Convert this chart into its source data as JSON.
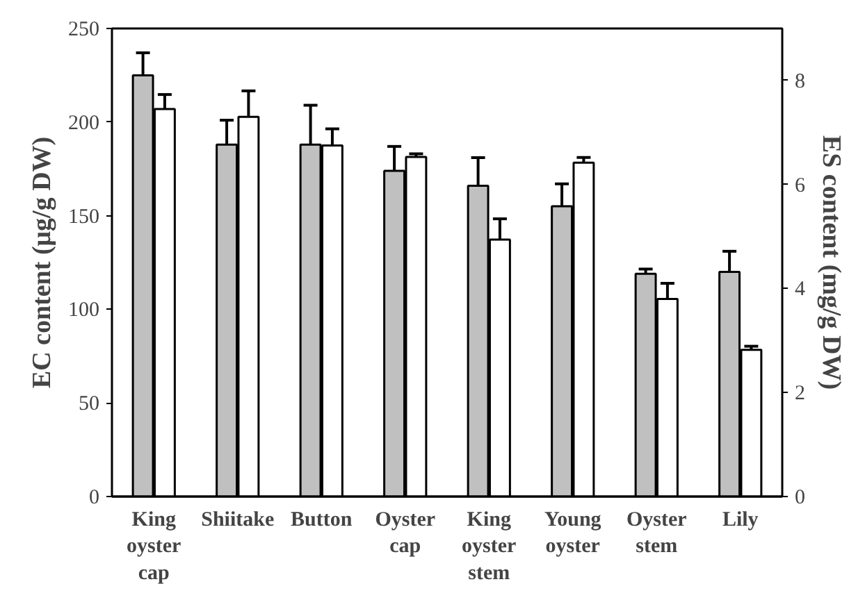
{
  "chart_data": {
    "type": "bar",
    "ylabel": "EC content (μg/g DW)",
    "y2label": "ES content (mg/g DW)",
    "categories": [
      "King oyster cap",
      "Shiitake",
      "Button",
      "Oyster cap",
      "King oyster stem",
      "Young oyster",
      "Oyster stem",
      "Lily"
    ],
    "series": [
      {
        "color": "#c0c0c0",
        "values": [
          225,
          188,
          188,
          174,
          166,
          155,
          119,
          120
        ],
        "errors": [
          12,
          13,
          21,
          13,
          15,
          12,
          2.5,
          11
        ]
      },
      {
        "color": "#ffffff",
        "axis": "y2",
        "values": [
          7.45,
          7.3,
          6.75,
          6.53,
          4.94,
          6.42,
          3.8,
          2.82
        ],
        "errors": [
          0.28,
          0.5,
          0.32,
          0.06,
          0.4,
          0.1,
          0.3,
          0.07
        ]
      }
    ],
    "ylim": [
      0,
      250
    ],
    "yticks": [
      0,
      50,
      100,
      150,
      200,
      250
    ],
    "y2lim": [
      0,
      9
    ],
    "y2ticks": [
      0,
      2,
      4,
      6,
      8
    ],
    "grid": false
  }
}
